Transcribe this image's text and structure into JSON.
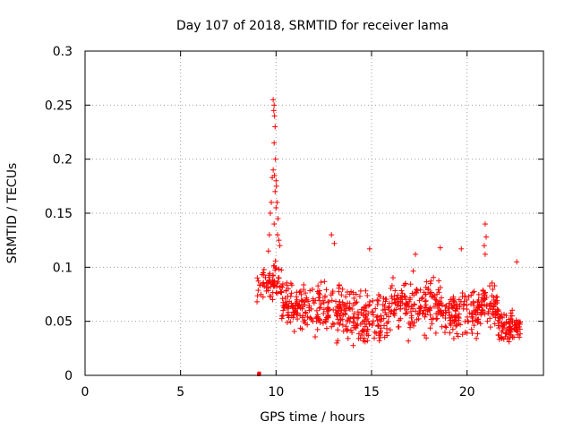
{
  "chart_data": {
    "type": "scatter",
    "title": "Day 107 of 2018, SRMTID for receiver lama",
    "xlabel": "GPS time / hours",
    "ylabel": "SRMTID / TECUs",
    "xlim": [
      0,
      24
    ],
    "ylim": [
      0,
      0.3
    ],
    "x_ticks": [
      0,
      5,
      10,
      15,
      20
    ],
    "x_tick_labels": [
      "0",
      "5",
      "10",
      "15",
      "20"
    ],
    "y_ticks": [
      0,
      0.05,
      0.1,
      0.15,
      0.2,
      0.25,
      0.3
    ],
    "y_tick_labels": [
      "0",
      "0.05",
      "0.1",
      "0.15",
      "0.2",
      "0.25",
      "0.3"
    ],
    "grid": true,
    "marker": "+",
    "color": "#ff0000",
    "outlier_points": [
      [
        9.1,
        0.0
      ],
      [
        9.12,
        0.001
      ]
    ],
    "spike_points": [
      [
        9.85,
        0.255
      ],
      [
        9.9,
        0.25
      ],
      [
        9.88,
        0.245
      ],
      [
        9.92,
        0.24
      ],
      [
        9.95,
        0.23
      ],
      [
        9.9,
        0.215
      ],
      [
        9.97,
        0.2
      ],
      [
        9.85,
        0.19
      ],
      [
        9.92,
        0.185
      ],
      [
        10.0,
        0.18
      ],
      [
        9.8,
        0.183
      ],
      [
        10.02,
        0.175
      ],
      [
        9.95,
        0.17
      ],
      [
        10.05,
        0.16
      ],
      [
        9.75,
        0.16
      ],
      [
        10.0,
        0.155
      ],
      [
        9.7,
        0.15
      ],
      [
        10.1,
        0.145
      ],
      [
        9.9,
        0.14
      ],
      [
        10.08,
        0.13
      ],
      [
        9.65,
        0.13
      ],
      [
        10.15,
        0.125
      ],
      [
        10.2,
        0.12
      ],
      [
        9.6,
        0.115
      ],
      [
        12.9,
        0.13
      ],
      [
        13.05,
        0.122
      ],
      [
        14.9,
        0.117
      ],
      [
        17.3,
        0.112
      ],
      [
        18.6,
        0.118
      ],
      [
        19.7,
        0.117
      ],
      [
        20.95,
        0.14
      ],
      [
        21.0,
        0.128
      ],
      [
        20.9,
        0.12
      ],
      [
        20.95,
        0.112
      ],
      [
        22.6,
        0.105
      ]
    ],
    "segments": [
      {
        "x_start": 9.0,
        "x_end": 10.3,
        "y_center": 0.085,
        "y_spread": 0.03,
        "n": 70
      },
      {
        "x_start": 10.3,
        "x_end": 12.0,
        "y_center": 0.065,
        "y_spread": 0.035,
        "n": 110
      },
      {
        "x_start": 12.0,
        "x_end": 14.0,
        "y_center": 0.06,
        "y_spread": 0.04,
        "n": 130
      },
      {
        "x_start": 14.0,
        "x_end": 16.0,
        "y_center": 0.055,
        "y_spread": 0.04,
        "n": 130
      },
      {
        "x_start": 16.0,
        "x_end": 18.6,
        "y_center": 0.065,
        "y_spread": 0.04,
        "n": 160
      },
      {
        "x_start": 18.6,
        "x_end": 20.6,
        "y_center": 0.058,
        "y_spread": 0.038,
        "n": 130
      },
      {
        "x_start": 20.6,
        "x_end": 21.6,
        "y_center": 0.065,
        "y_spread": 0.035,
        "n": 70
      },
      {
        "x_start": 21.6,
        "x_end": 22.8,
        "y_center": 0.045,
        "y_spread": 0.025,
        "n": 90
      }
    ]
  }
}
